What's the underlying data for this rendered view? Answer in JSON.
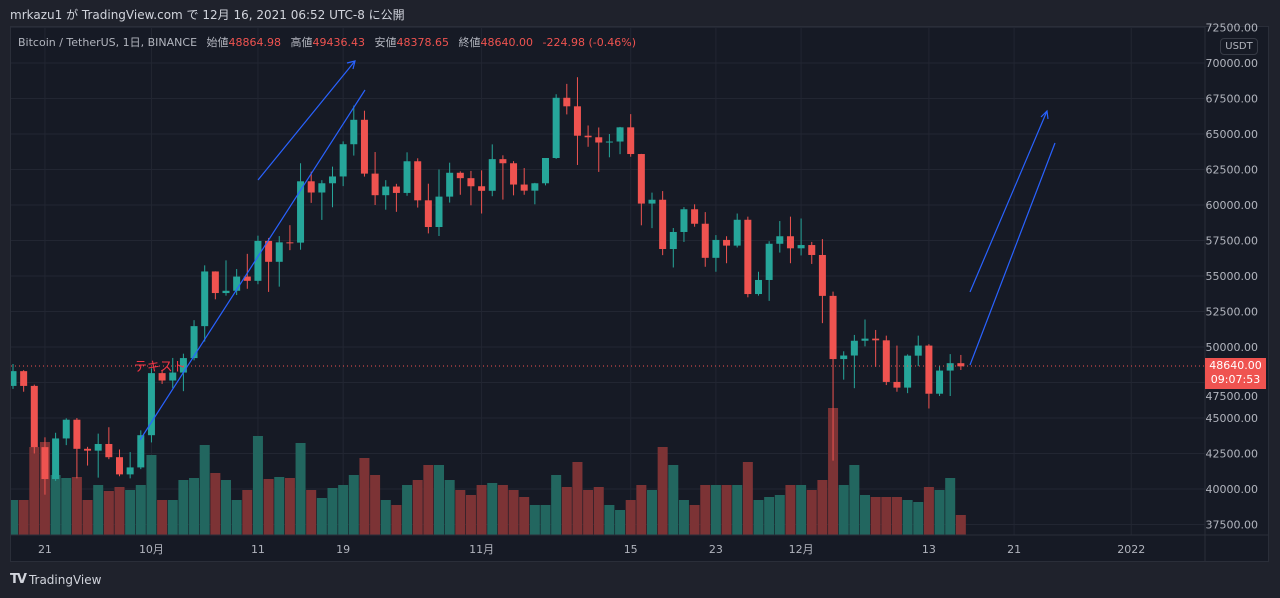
{
  "header": {
    "published": "mrkazu1 が TradingView.com で 12月 16, 2021 06:52 UTC-8 に公開"
  },
  "legend": {
    "symbol": "Bitcoin / TetherUS, 1日, BINANCE",
    "open_label": "始値",
    "open": "48864.98",
    "high_label": "高値",
    "high": "49436.43",
    "low_label": "安値",
    "low": "48378.65",
    "close_label": "終値",
    "close": "48640.00",
    "change": "-224.98 (-0.46%)"
  },
  "price_axis": {
    "currency": "USDT",
    "last_price": "48640.00",
    "countdown": "09:07:53"
  },
  "annotation_text": "テキスト",
  "footer": {
    "brand": "TradingView",
    "logo": "TV"
  },
  "colors": {
    "up": "#26a69a",
    "down": "#ef5350",
    "vol_up": "#22665f",
    "vol_down": "#7c3335",
    "drawing": "#2962ff"
  },
  "chart_data": {
    "type": "candlestick",
    "symbol": "BTCUSDT",
    "interval": "1D",
    "start_date": "2021-09-18",
    "y_ticks": [
      72500,
      70000,
      67500,
      65000,
      62500,
      60000,
      57500,
      55000,
      52500,
      50000,
      47500,
      45000,
      42500,
      40000,
      37500
    ],
    "y_tick_labels": [
      "72500.00",
      "70000.00",
      "67500.00",
      "65000.00",
      "62500.00",
      "60000.00",
      "57500.00",
      "55000.00",
      "52500.00",
      "50000.00",
      "47500.00",
      "45000.00",
      "42500.00",
      "40000.00",
      "37500.00"
    ],
    "x_ticks": [
      {
        "label": "21",
        "index": 3
      },
      {
        "label": "10月",
        "index": 13
      },
      {
        "label": "11",
        "index": 23
      },
      {
        "label": "19",
        "index": 31
      },
      {
        "label": "11月",
        "index": 44
      },
      {
        "label": "15",
        "index": 58
      },
      {
        "label": "23",
        "index": 66
      },
      {
        "label": "12月",
        "index": 74
      },
      {
        "label": "13",
        "index": 86
      },
      {
        "label": "21",
        "index": 94
      },
      {
        "label": "2022",
        "index": 105
      }
    ],
    "last_price": 48640,
    "ohlc": [
      [
        47260,
        48800,
        47050,
        48300
      ],
      [
        48300,
        48370,
        46850,
        47260
      ],
      [
        47260,
        47350,
        42500,
        42950
      ],
      [
        42950,
        43640,
        39600,
        40700
      ],
      [
        40700,
        43960,
        40570,
        43560
      ],
      [
        43560,
        44980,
        43090,
        44880
      ],
      [
        44880,
        45000,
        40750,
        42830
      ],
      [
        42830,
        42970,
        41650,
        42700
      ],
      [
        42700,
        43900,
        40800,
        43170
      ],
      [
        43170,
        44350,
        42100,
        42240
      ],
      [
        42240,
        42780,
        40900,
        41030
      ],
      [
        41030,
        42600,
        40750,
        41520
      ],
      [
        41520,
        44130,
        41400,
        43790
      ],
      [
        43790,
        48500,
        43280,
        48160
      ],
      [
        48160,
        48360,
        47400,
        47640
      ],
      [
        47640,
        49230,
        47100,
        48200
      ],
      [
        48200,
        49530,
        46890,
        49220
      ],
      [
        49220,
        51890,
        49060,
        51470
      ],
      [
        51470,
        55750,
        50380,
        55320
      ],
      [
        55320,
        55330,
        53360,
        53800
      ],
      [
        53800,
        56100,
        53620,
        53960
      ],
      [
        53960,
        55490,
        53660,
        54960
      ],
      [
        54960,
        56560,
        54100,
        54660
      ],
      [
        54660,
        57840,
        54420,
        57470
      ],
      [
        57470,
        57680,
        53880,
        56000
      ],
      [
        56000,
        57810,
        54250,
        57370
      ],
      [
        57370,
        58580,
        56820,
        57350
      ],
      [
        57350,
        62940,
        56850,
        61670
      ],
      [
        61670,
        62350,
        60150,
        60880
      ],
      [
        60880,
        61750,
        58950,
        61530
      ],
      [
        61530,
        62700,
        59840,
        62010
      ],
      [
        62010,
        64480,
        61330,
        64280
      ],
      [
        64280,
        67000,
        63480,
        66000
      ],
      [
        66000,
        66640,
        62000,
        62210
      ],
      [
        62210,
        63730,
        60000,
        60690
      ],
      [
        60690,
        61750,
        59670,
        61300
      ],
      [
        61300,
        61490,
        59520,
        60850
      ],
      [
        60850,
        63710,
        60650,
        63080
      ],
      [
        63080,
        63290,
        59820,
        60330
      ],
      [
        60330,
        61500,
        58000,
        58450
      ],
      [
        58450,
        62500,
        57820,
        60590
      ],
      [
        60590,
        62980,
        60170,
        62270
      ],
      [
        62270,
        62370,
        60720,
        61890
      ],
      [
        61890,
        62400,
        59980,
        61320
      ],
      [
        61320,
        62440,
        59400,
        61000
      ],
      [
        61000,
        64270,
        60620,
        63230
      ],
      [
        63230,
        63500,
        60380,
        62940
      ],
      [
        62940,
        63090,
        60680,
        61440
      ],
      [
        61440,
        62600,
        60720,
        61010
      ],
      [
        61010,
        61560,
        60050,
        61530
      ],
      [
        61530,
        63290,
        61380,
        63310
      ],
      [
        63310,
        67800,
        63250,
        67550
      ],
      [
        67550,
        68530,
        66380,
        66950
      ],
      [
        66950,
        69000,
        62820,
        64880
      ],
      [
        64880,
        65600,
        64100,
        64770
      ],
      [
        64770,
        65460,
        62330,
        64400
      ],
      [
        64400,
        65000,
        63360,
        64470
      ],
      [
        64470,
        65500,
        63580,
        65470
      ],
      [
        65470,
        66400,
        63400,
        63590
      ],
      [
        63590,
        63600,
        58570,
        60100
      ],
      [
        60100,
        60870,
        58370,
        60370
      ],
      [
        60370,
        60980,
        56470,
        56900
      ],
      [
        56900,
        58380,
        55600,
        58100
      ],
      [
        58100,
        59850,
        57400,
        59700
      ],
      [
        59700,
        60050,
        58470,
        58680
      ],
      [
        58680,
        59500,
        55650,
        56280
      ],
      [
        56280,
        57880,
        55300,
        57540
      ],
      [
        57540,
        57800,
        55900,
        57140
      ],
      [
        57140,
        59400,
        57010,
        58960
      ],
      [
        58960,
        59180,
        53500,
        53730
      ],
      [
        53730,
        55300,
        53620,
        54720
      ],
      [
        54720,
        57450,
        53250,
        57270
      ],
      [
        57270,
        58870,
        56650,
        57800
      ],
      [
        57800,
        59180,
        55900,
        56950
      ],
      [
        56950,
        59050,
        56450,
        57180
      ],
      [
        57180,
        57400,
        55850,
        56480
      ],
      [
        56480,
        57600,
        51680,
        53600
      ],
      [
        53600,
        53900,
        42000,
        49150
      ],
      [
        49150,
        49700,
        47700,
        49400
      ],
      [
        49400,
        50850,
        47100,
        50440
      ],
      [
        50440,
        51940,
        50040,
        50590
      ],
      [
        50590,
        51200,
        48600,
        50470
      ],
      [
        50470,
        50800,
        47320,
        47540
      ],
      [
        47540,
        50100,
        46850,
        47140
      ],
      [
        47140,
        49480,
        46750,
        49390
      ],
      [
        49390,
        50800,
        48650,
        50100
      ],
      [
        50100,
        50200,
        45670,
        46710
      ],
      [
        46710,
        48700,
        46550,
        48340
      ],
      [
        48340,
        49500,
        46550,
        48860
      ],
      [
        48860,
        49440,
        48380,
        48640
      ]
    ],
    "volume_k": [
      35,
      35,
      88,
      93,
      60,
      57,
      58,
      35,
      50,
      44,
      48,
      45,
      50,
      80,
      35,
      35,
      55,
      57,
      90,
      62,
      55,
      35,
      45,
      99,
      56,
      58,
      57,
      92,
      45,
      37,
      47,
      50,
      60,
      77,
      60,
      35,
      30,
      50,
      55,
      70,
      70,
      55,
      45,
      40,
      50,
      52,
      50,
      45,
      38,
      30,
      30,
      60,
      48,
      73,
      45,
      48,
      30,
      25,
      35,
      50,
      45,
      88,
      70,
      35,
      30,
      50,
      50,
      50,
      50,
      73,
      35,
      38,
      40,
      50,
      50,
      45,
      55,
      127,
      50,
      70,
      40,
      38,
      38,
      38,
      35,
      33,
      48,
      45,
      57,
      20
    ]
  }
}
